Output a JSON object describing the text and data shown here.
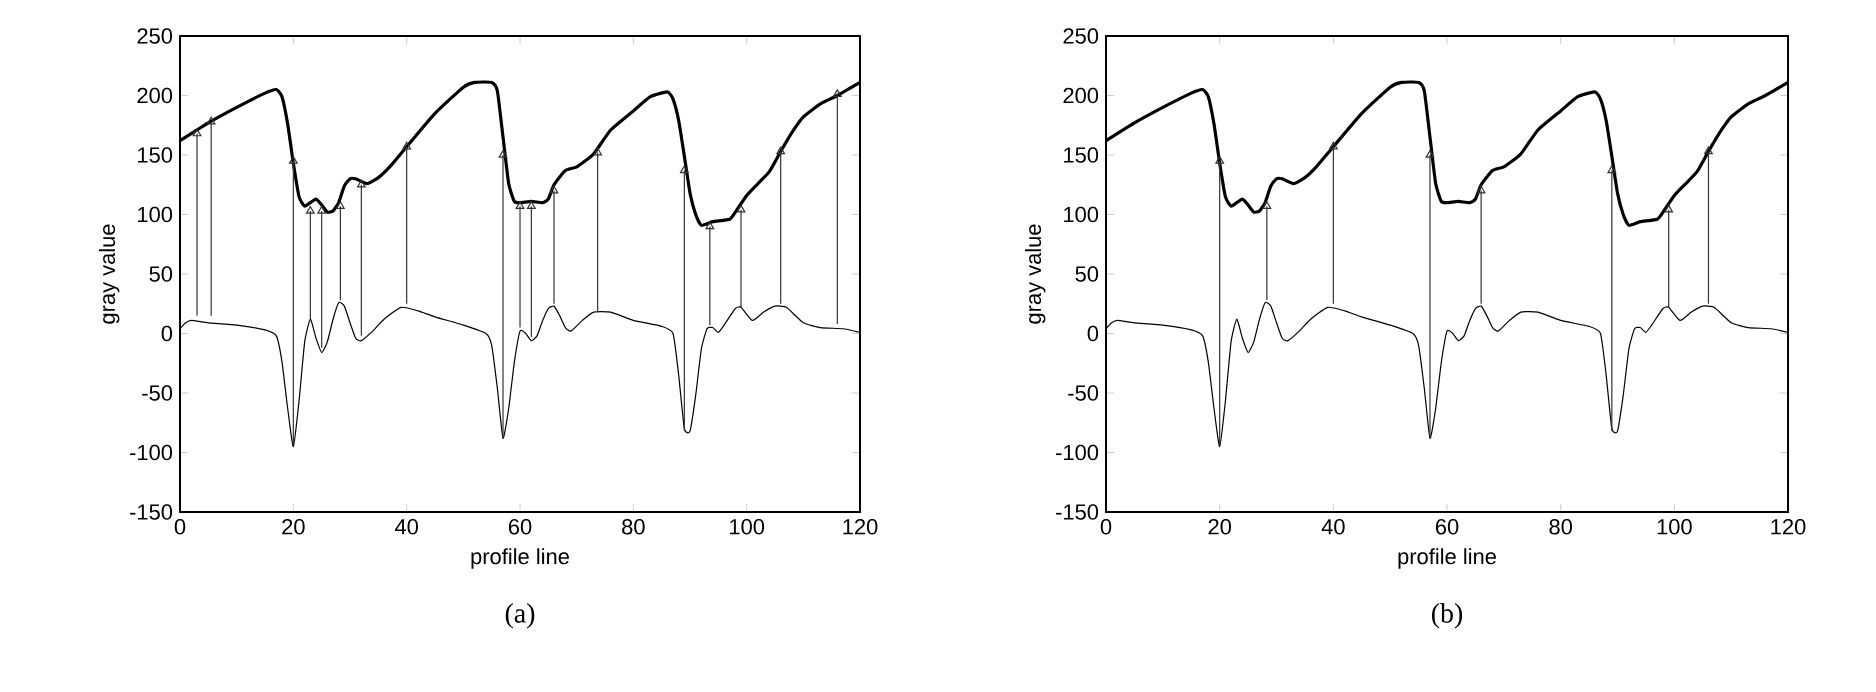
{
  "chart_data": [
    {
      "type": "line",
      "title": "(a)",
      "xlabel": "profile line",
      "ylabel": "gray value",
      "xlim": [
        0,
        120
      ],
      "ylim": [
        -150,
        250
      ],
      "xticks": [
        0,
        20,
        40,
        60,
        80,
        100,
        120
      ],
      "yticks": [
        -150,
        -100,
        -50,
        0,
        50,
        100,
        150,
        200,
        250
      ],
      "grid": false,
      "marker": "none",
      "line_style": "solid",
      "series": [
        {
          "color": "#000000",
          "x": [
            0,
            5,
            10,
            15,
            17,
            18,
            19,
            20,
            21,
            22,
            23,
            24,
            25,
            26,
            27,
            28,
            29,
            30,
            31,
            33,
            35,
            37,
            40,
            45,
            50,
            52,
            55,
            56,
            57,
            58,
            59,
            60,
            62,
            64,
            65,
            66,
            68,
            70,
            73,
            76,
            80,
            83,
            86,
            87,
            88,
            89,
            90,
            91,
            92,
            94,
            97,
            98,
            100,
            102,
            104,
            106,
            108,
            110,
            113,
            116,
            120
          ],
          "values": [
            162,
            177,
            190,
            202,
            205,
            199,
            176,
            143,
            115,
            107,
            110,
            113,
            108,
            102,
            103,
            110,
            124,
            130,
            130,
            126,
            131,
            140,
            157,
            185,
            207,
            211,
            211,
            204,
            165,
            126,
            111,
            110,
            111,
            110,
            113,
            125,
            137,
            140,
            151,
            171,
            187,
            199,
            203,
            197,
            179,
            149,
            118,
            100,
            91,
            94,
            96,
            102,
            116,
            126,
            136,
            153,
            169,
            182,
            193,
            200,
            211
          ]
        },
        {
          "color": "#000000",
          "x": [
            0,
            1,
            2,
            5,
            10,
            15,
            17,
            18,
            19,
            20,
            21,
            22,
            23,
            24,
            25,
            26,
            27,
            28,
            29,
            30,
            31,
            32,
            34,
            36,
            39,
            42,
            45,
            50,
            54,
            55,
            56,
            57,
            58,
            59,
            60,
            61,
            62,
            63,
            64,
            65,
            66,
            67,
            68,
            69,
            71,
            73,
            76,
            80,
            85,
            87,
            88,
            89,
            90,
            91,
            92,
            93,
            94,
            95,
            96,
            98,
            99,
            101,
            103,
            105,
            107,
            110,
            113,
            117,
            120
          ],
          "values": [
            4,
            9,
            11,
            9,
            7,
            3,
            -2,
            -24,
            -63,
            -95,
            -57,
            -7,
            12,
            -4,
            -16,
            -7,
            12,
            26,
            23,
            9,
            -4,
            -6,
            2,
            12,
            22,
            19,
            14,
            7,
            0,
            -10,
            -46,
            -88,
            -63,
            -24,
            2,
            0,
            -6,
            -2,
            11,
            21,
            23,
            15,
            5,
            2,
            11,
            18,
            18,
            11,
            6,
            0,
            -35,
            -80,
            -82,
            -52,
            -13,
            4,
            5,
            1,
            7,
            21,
            22,
            11,
            18,
            23,
            22,
            9,
            5,
            4,
            1
          ]
        },
        {
          "marker": "triangle",
          "color": "#333333",
          "x": [
            3,
            3
          ],
          "values": [
            15,
            168
          ]
        },
        {
          "marker": "triangle",
          "color": "#333333",
          "x": [
            5.5,
            5.5
          ],
          "values": [
            15,
            178
          ]
        },
        {
          "marker": "triangle",
          "color": "#333333",
          "x": [
            20,
            20
          ],
          "values": [
            -93,
            145
          ]
        },
        {
          "marker": "triangle",
          "color": "#333333",
          "x": [
            23,
            23
          ],
          "values": [
            12,
            103
          ]
        },
        {
          "marker": "triangle",
          "color": "#333333",
          "x": [
            25,
            25
          ],
          "values": [
            -12,
            103
          ]
        },
        {
          "marker": "triangle",
          "color": "#333333",
          "x": [
            28.3,
            28.3
          ],
          "values": [
            28,
            107
          ]
        },
        {
          "marker": "triangle",
          "color": "#333333",
          "x": [
            32,
            32
          ],
          "values": [
            -2,
            125
          ]
        },
        {
          "marker": "triangle",
          "color": "#333333",
          "x": [
            40,
            40
          ],
          "values": [
            25,
            157
          ]
        },
        {
          "marker": "triangle",
          "color": "#333333",
          "x": [
            57,
            57
          ],
          "values": [
            -88,
            150
          ]
        },
        {
          "marker": "triangle",
          "color": "#333333",
          "x": [
            60,
            60
          ],
          "values": [
            5,
            107
          ]
        },
        {
          "marker": "triangle",
          "color": "#333333",
          "x": [
            62,
            62
          ],
          "values": [
            -3,
            107
          ]
        },
        {
          "marker": "triangle",
          "color": "#333333",
          "x": [
            66,
            66
          ],
          "values": [
            25,
            120
          ]
        },
        {
          "marker": "triangle",
          "color": "#333333",
          "x": [
            73.7,
            73.7
          ],
          "values": [
            18,
            152
          ]
        },
        {
          "marker": "triangle",
          "color": "#333333",
          "x": [
            89,
            89
          ],
          "values": [
            -82,
            137
          ]
        },
        {
          "marker": "triangle",
          "color": "#333333",
          "x": [
            93.5,
            93.5
          ],
          "values": [
            7,
            90
          ]
        },
        {
          "marker": "triangle",
          "color": "#333333",
          "x": [
            99,
            99
          ],
          "values": [
            22,
            104
          ]
        },
        {
          "marker": "triangle",
          "color": "#333333",
          "x": [
            106,
            106
          ],
          "values": [
            25,
            153
          ]
        },
        {
          "marker": "triangle",
          "color": "#333333",
          "x": [
            116,
            116
          ],
          "values": [
            8,
            201
          ]
        }
      ]
    },
    {
      "type": "line",
      "title": "(b)",
      "xlabel": "profile line",
      "ylabel": "gray value",
      "xlim": [
        0,
        120
      ],
      "ylim": [
        -150,
        250
      ],
      "xticks": [
        0,
        20,
        40,
        60,
        80,
        100,
        120
      ],
      "yticks": [
        -150,
        -100,
        -50,
        0,
        50,
        100,
        150,
        200,
        250
      ],
      "grid": false,
      "marker": "none",
      "line_style": "solid",
      "series": [
        {
          "color": "#000000",
          "x": [
            0,
            5,
            10,
            15,
            17,
            18,
            19,
            20,
            21,
            22,
            23,
            24,
            25,
            26,
            27,
            28,
            29,
            30,
            31,
            33,
            35,
            37,
            40,
            45,
            50,
            52,
            55,
            56,
            57,
            58,
            59,
            60,
            62,
            64,
            65,
            66,
            68,
            70,
            73,
            76,
            80,
            83,
            86,
            87,
            88,
            89,
            90,
            91,
            92,
            94,
            97,
            98,
            100,
            102,
            104,
            106,
            108,
            110,
            113,
            116,
            120
          ],
          "values": [
            162,
            177,
            190,
            202,
            205,
            199,
            176,
            143,
            115,
            107,
            110,
            113,
            108,
            102,
            103,
            110,
            124,
            130,
            130,
            126,
            131,
            140,
            157,
            185,
            207,
            211,
            211,
            204,
            165,
            126,
            111,
            110,
            111,
            110,
            113,
            125,
            137,
            140,
            151,
            171,
            187,
            199,
            203,
            197,
            179,
            149,
            118,
            100,
            91,
            94,
            96,
            102,
            116,
            126,
            136,
            153,
            169,
            182,
            193,
            200,
            211
          ]
        },
        {
          "color": "#000000",
          "x": [
            0,
            1,
            2,
            5,
            10,
            15,
            17,
            18,
            19,
            20,
            21,
            22,
            23,
            24,
            25,
            26,
            27,
            28,
            29,
            30,
            31,
            32,
            34,
            36,
            39,
            42,
            45,
            50,
            54,
            55,
            56,
            57,
            58,
            59,
            60,
            61,
            62,
            63,
            64,
            65,
            66,
            67,
            68,
            69,
            71,
            73,
            76,
            80,
            85,
            87,
            88,
            89,
            90,
            91,
            92,
            93,
            94,
            95,
            96,
            98,
            99,
            101,
            103,
            105,
            107,
            110,
            113,
            117,
            120
          ],
          "values": [
            4,
            9,
            11,
            9,
            7,
            3,
            -2,
            -24,
            -63,
            -95,
            -57,
            -7,
            12,
            -4,
            -16,
            -7,
            12,
            26,
            23,
            9,
            -4,
            -6,
            2,
            12,
            22,
            19,
            14,
            7,
            0,
            -10,
            -46,
            -88,
            -63,
            -24,
            2,
            0,
            -6,
            -2,
            11,
            21,
            23,
            15,
            5,
            2,
            11,
            18,
            18,
            11,
            6,
            0,
            -35,
            -80,
            -82,
            -52,
            -13,
            4,
            5,
            1,
            7,
            21,
            22,
            11,
            18,
            23,
            22,
            9,
            5,
            4,
            1
          ]
        },
        {
          "marker": "triangle",
          "color": "#333333",
          "x": [
            20,
            20
          ],
          "values": [
            -93,
            145
          ]
        },
        {
          "marker": "triangle",
          "color": "#333333",
          "x": [
            28.3,
            28.3
          ],
          "values": [
            28,
            107
          ]
        },
        {
          "marker": "triangle",
          "color": "#333333",
          "x": [
            40,
            40
          ],
          "values": [
            25,
            157
          ]
        },
        {
          "marker": "triangle",
          "color": "#333333",
          "x": [
            57,
            57
          ],
          "values": [
            -88,
            150
          ]
        },
        {
          "marker": "triangle",
          "color": "#333333",
          "x": [
            66,
            66
          ],
          "values": [
            25,
            120
          ]
        },
        {
          "marker": "triangle",
          "color": "#333333",
          "x": [
            89,
            89
          ],
          "values": [
            -82,
            137
          ]
        },
        {
          "marker": "triangle",
          "color": "#333333",
          "x": [
            99,
            99
          ],
          "values": [
            22,
            104
          ]
        },
        {
          "marker": "triangle",
          "color": "#333333",
          "x": [
            106,
            106
          ],
          "values": [
            25,
            153
          ]
        }
      ]
    }
  ]
}
